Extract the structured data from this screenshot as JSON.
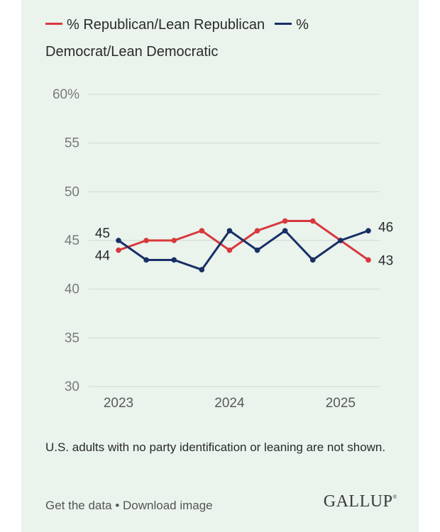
{
  "chart_data": {
    "type": "line",
    "title": "",
    "xlabel": "",
    "ylabel": "",
    "ylim": [
      30,
      60
    ],
    "yticks": [
      30,
      35,
      40,
      45,
      50,
      55,
      60
    ],
    "ytick_labels": [
      "30",
      "35",
      "40",
      "45",
      "50",
      "55",
      "60%"
    ],
    "x": [
      2023.0,
      2023.25,
      2023.5,
      2023.75,
      2024.0,
      2024.25,
      2024.5,
      2024.75,
      2025.0,
      2025.25
    ],
    "xlim": [
      2023.0,
      2025.25
    ],
    "xticks": [
      2023,
      2024,
      2025
    ],
    "xtick_labels": [
      "2023",
      "2024",
      "2025"
    ],
    "grid": true,
    "legend_position": "top",
    "series": [
      {
        "name": "% Republican/Lean Republican",
        "color": "#d8383d",
        "values": [
          44,
          45,
          45,
          46,
          44,
          46,
          47,
          47,
          45,
          43
        ],
        "start_label": "44",
        "end_label": "43"
      },
      {
        "name": "% Democrat/Lean Democratic",
        "color": "#182f66",
        "values": [
          45,
          43,
          43,
          42,
          46,
          44,
          46,
          43,
          45,
          46
        ],
        "start_label": "45",
        "end_label": "46"
      }
    ]
  },
  "note": "U.S. adults with no party identification or leaning are not shown.",
  "links": {
    "get_data": "Get the data",
    "separator": "•",
    "download": "Download image"
  },
  "brand": {
    "name": "GALLUP",
    "mark": "®"
  }
}
